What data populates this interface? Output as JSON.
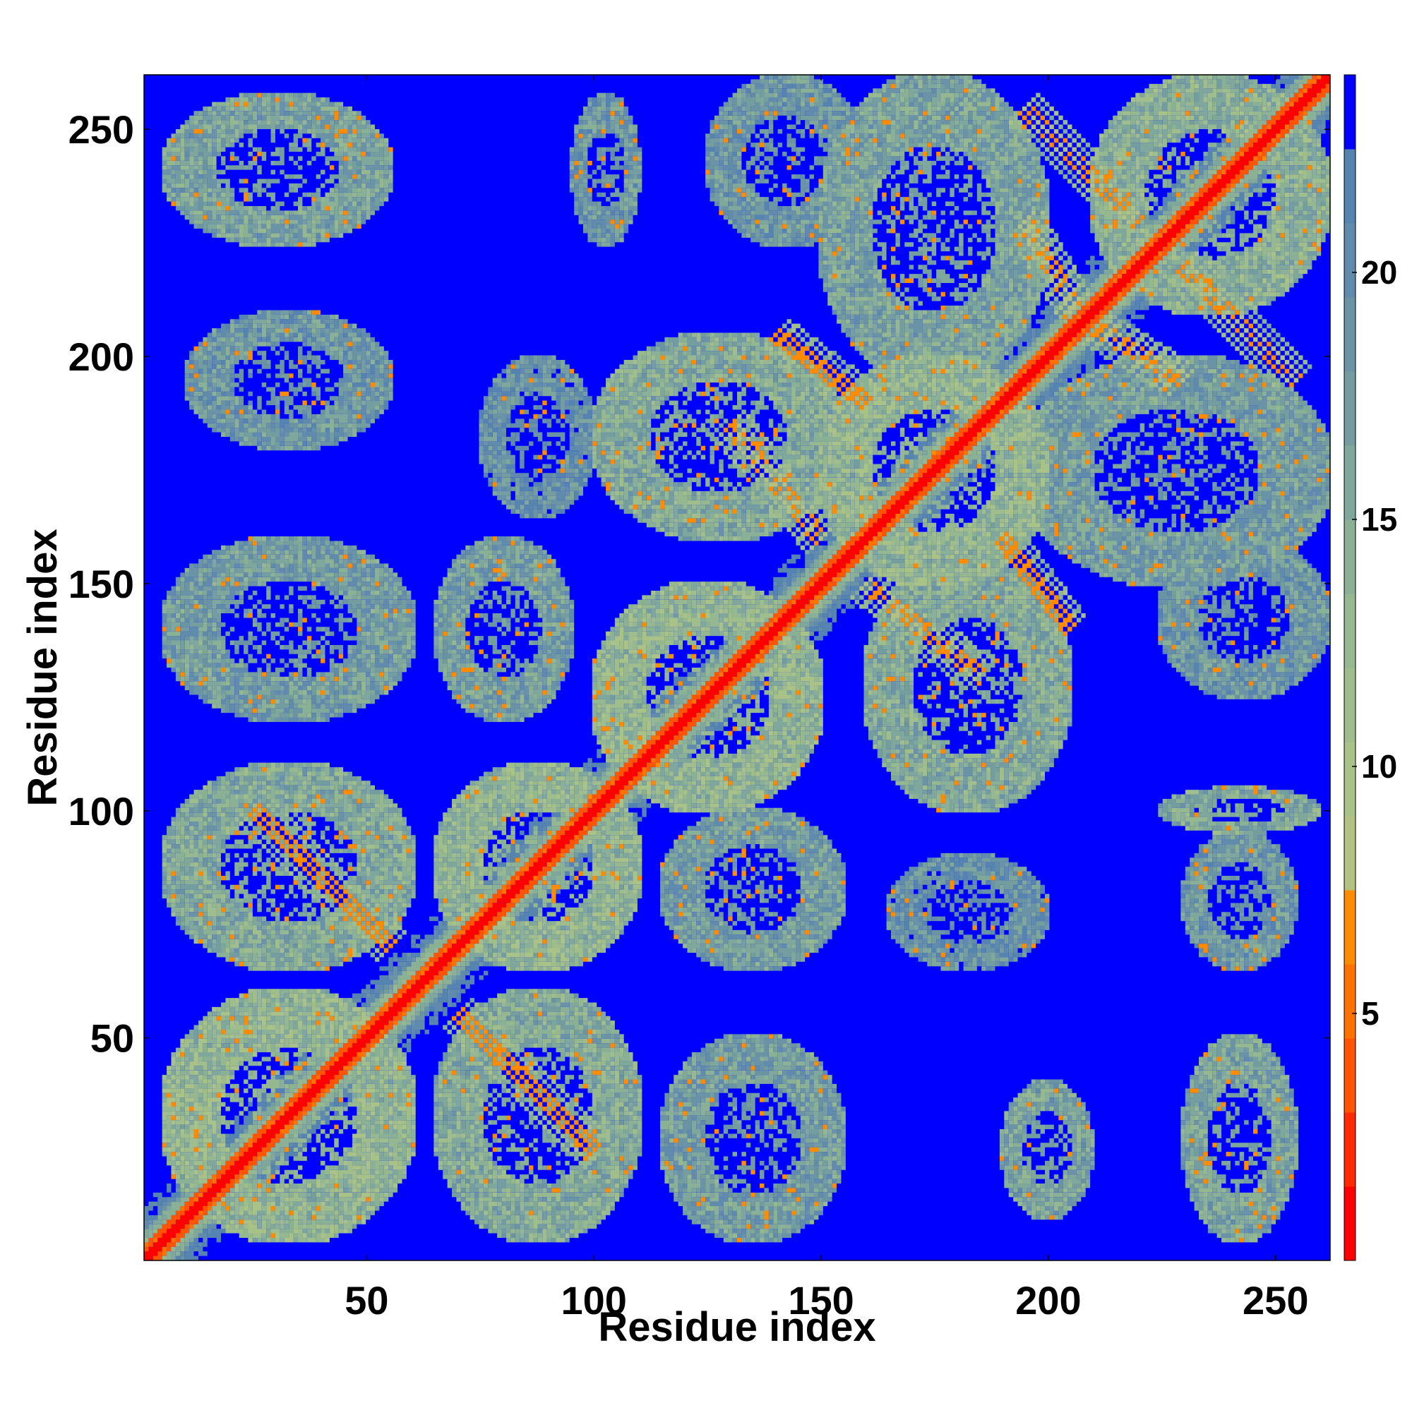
{
  "chart_data": {
    "type": "heatmap",
    "title": "",
    "xlabel": "Residue index",
    "ylabel": "Residue index",
    "xlim": [
      1,
      262
    ],
    "ylim": [
      1,
      262
    ],
    "x_ticks": [
      50,
      100,
      150,
      200,
      250
    ],
    "y_ticks": [
      50,
      100,
      150,
      200,
      250
    ],
    "colorbar": {
      "range": [
        0,
        24
      ],
      "ticks": [
        5,
        10,
        15,
        20
      ],
      "levels": [
        {
          "to": 1.5,
          "color": "#ff0000"
        },
        {
          "to": 3,
          "color": "#ff2a00"
        },
        {
          "to": 4.5,
          "color": "#ff5500"
        },
        {
          "to": 6,
          "color": "#ff7200"
        },
        {
          "to": 7.5,
          "color": "#ff8c00"
        },
        {
          "to": 9,
          "color": "#b3c181"
        },
        {
          "to": 10.5,
          "color": "#a9c288"
        },
        {
          "to": 12,
          "color": "#9fbe8c"
        },
        {
          "to": 13.5,
          "color": "#95b890"
        },
        {
          "to": 15,
          "color": "#8ab095"
        },
        {
          "to": 16.5,
          "color": "#7fa79b"
        },
        {
          "to": 18,
          "color": "#749da0"
        },
        {
          "to": 19.5,
          "color": "#6a94a6"
        },
        {
          "to": 21,
          "color": "#608bac"
        },
        {
          "to": 22.5,
          "color": "#5584b0"
        },
        {
          "to": 24,
          "color": "#0000ff"
        }
      ]
    },
    "background_color": "#0000ff",
    "diagonal": {
      "color": "#ff0000",
      "from": 1,
      "to": 262
    },
    "contact_blocks": [
      {
        "x": [
          5,
          60
        ],
        "y": [
          5,
          60
        ],
        "level": 12
      },
      {
        "x": [
          5,
          60
        ],
        "y": [
          65,
          110
        ],
        "level": 14
      },
      {
        "x": [
          65,
          110
        ],
        "y": [
          5,
          60
        ],
        "level": 14
      },
      {
        "x": [
          65,
          110
        ],
        "y": [
          65,
          110
        ],
        "level": 12
      },
      {
        "x": [
          5,
          60
        ],
        "y": [
          120,
          160
        ],
        "level": 16
      },
      {
        "x": [
          65,
          95
        ],
        "y": [
          120,
          160
        ],
        "level": 16
      },
      {
        "x": [
          5,
          55
        ],
        "y": [
          225,
          258
        ],
        "level": 15
      },
      {
        "x": [
          95,
          110
        ],
        "y": [
          225,
          258
        ],
        "level": 17
      },
      {
        "x": [
          10,
          55
        ],
        "y": [
          180,
          210
        ],
        "level": 17
      },
      {
        "x": [
          75,
          100
        ],
        "y": [
          165,
          200
        ],
        "level": 18
      },
      {
        "x": [
          115,
          155
        ],
        "y": [
          5,
          50
        ],
        "level": 16
      },
      {
        "x": [
          115,
          155
        ],
        "y": [
          65,
          100
        ],
        "level": 16
      },
      {
        "x": [
          190,
          210
        ],
        "y": [
          10,
          40
        ],
        "level": 15
      },
      {
        "x": [
          230,
          255
        ],
        "y": [
          5,
          50
        ],
        "level": 15
      },
      {
        "x": [
          165,
          200
        ],
        "y": [
          65,
          90
        ],
        "level": 18
      },
      {
        "x": [
          230,
          255
        ],
        "y": [
          65,
          95
        ],
        "level": 17
      },
      {
        "x": [
          225,
          260
        ],
        "y": [
          95,
          105
        ],
        "level": 14
      },
      {
        "x": [
          195,
          262
        ],
        "y": [
          150,
          200
        ],
        "level": 16
      },
      {
        "x": [
          150,
          200
        ],
        "y": [
          195,
          262
        ],
        "level": 15
      },
      {
        "x": [
          210,
          262
        ],
        "y": [
          210,
          262
        ],
        "level": 13
      },
      {
        "x": [
          100,
          150
        ],
        "y": [
          100,
          150
        ],
        "level": 12
      },
      {
        "x": [
          150,
          200
        ],
        "y": [
          150,
          200
        ],
        "level": 12
      },
      {
        "x": [
          100,
          155
        ],
        "y": [
          160,
          205
        ],
        "level": 14
      },
      {
        "x": [
          160,
          205
        ],
        "y": [
          100,
          155
        ],
        "level": 14
      },
      {
        "x": [
          125,
          160
        ],
        "y": [
          225,
          262
        ],
        "level": 17
      },
      {
        "x": [
          225,
          262
        ],
        "y": [
          125,
          160
        ],
        "level": 17
      }
    ],
    "contact_bands": [
      {
        "x": [
          25,
          55
        ],
        "y": [
          70,
          100
        ],
        "level": 6
      },
      {
        "x": [
          70,
          100
        ],
        "y": [
          25,
          55
        ],
        "level": 6
      },
      {
        "x": [
          130,
          150
        ],
        "y": [
          160,
          185
        ],
        "level": 7
      },
      {
        "x": [
          160,
          185
        ],
        "y": [
          130,
          150
        ],
        "level": 7
      },
      {
        "x": [
          140,
          160
        ],
        "y": [
          190,
          205
        ],
        "level": 6
      },
      {
        "x": [
          190,
          205
        ],
        "y": [
          140,
          160
        ],
        "level": 6
      },
      {
        "x": [
          195,
          210
        ],
        "y": [
          205,
          230
        ],
        "level": 7
      },
      {
        "x": [
          205,
          230
        ],
        "y": [
          195,
          210
        ],
        "level": 7
      },
      {
        "x": [
          230,
          255
        ],
        "y": [
          195,
          220
        ],
        "level": 7
      },
      {
        "x": [
          195,
          220
        ],
        "y": [
          230,
          255
        ],
        "level": 7
      }
    ]
  }
}
